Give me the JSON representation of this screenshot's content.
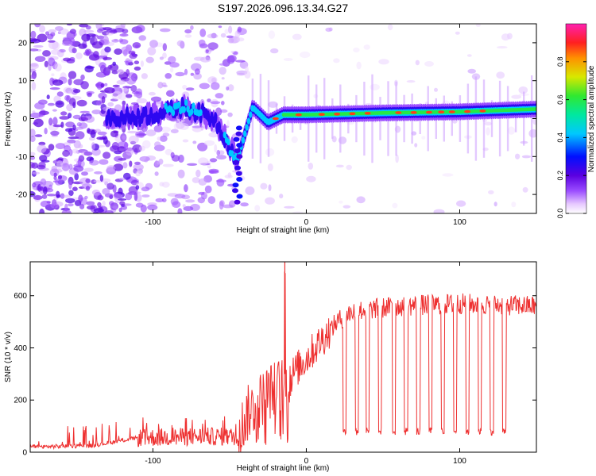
{
  "title": "S197.2026.096.13.34.G27",
  "colors": {
    "snr_line": "#ee3030",
    "axis": "#000000",
    "background": "#ffffff"
  },
  "chart_data": [
    {
      "type": "heatmap",
      "name": "spectrogram",
      "xlabel": "Height of straight line (km)",
      "ylabel": "Frequency (Hz)",
      "xlim": [
        -180,
        150
      ],
      "ylim": [
        -25,
        25
      ],
      "xticks": [
        -100,
        0,
        100
      ],
      "xtick_labels": [
        "-100",
        "0",
        "100"
      ],
      "yticks": [
        -20,
        -10,
        0,
        10,
        20
      ],
      "ytick_labels": [
        "-20",
        "-10",
        "0",
        "10",
        "20"
      ],
      "colorbar": {
        "label": "Normalized spectral amplitude",
        "range": [
          0,
          1
        ],
        "ticks": [
          0.0,
          0.2,
          0.4,
          0.6,
          0.8
        ],
        "tick_labels": [
          "0.0",
          "0.2",
          "0.4",
          "0.6",
          "0.8"
        ]
      },
      "ridge": {
        "description_points": [
          {
            "h": -125,
            "f": 0,
            "a": 0.3
          },
          {
            "h": -100,
            "f": 1,
            "a": 0.3
          },
          {
            "h": -80,
            "f": 3,
            "a": 0.35
          },
          {
            "h": -60,
            "f": 0,
            "a": 0.3
          },
          {
            "h": -45,
            "f": -11,
            "a": 0.35
          },
          {
            "h": -35,
            "f": 3,
            "a": 0.45
          },
          {
            "h": -25,
            "f": -1,
            "a": 0.45
          },
          {
            "h": -15,
            "f": 1,
            "a": 0.5
          },
          {
            "h": 0,
            "f": 1,
            "a": 0.55
          },
          {
            "h": 50,
            "f": 1.5,
            "a": 0.6
          },
          {
            "h": 100,
            "f": 1.8,
            "a": 0.6
          },
          {
            "h": 150,
            "f": 2.5,
            "a": 0.55
          }
        ],
        "peak_markers": [
          -20,
          -5,
          10,
          20,
          30,
          40,
          60,
          70,
          80,
          88,
          95,
          105,
          115
        ]
      }
    },
    {
      "type": "line",
      "name": "snr",
      "xlabel": "Height of straight line (km)",
      "ylabel": "SNR (10 * v/v)",
      "xlim": [
        -180,
        150
      ],
      "ylim": [
        0,
        730
      ],
      "xticks": [
        -100,
        0,
        100
      ],
      "xtick_labels": [
        "-100",
        "0",
        "100"
      ],
      "yticks": [
        0,
        200,
        400,
        600
      ],
      "ytick_labels": [
        "0",
        "200",
        "400",
        "600"
      ],
      "series": [
        {
          "name": "SNR",
          "envelope_points": [
            {
              "h": -180,
              "snr": 20
            },
            {
              "h": -140,
              "snr": 25
            },
            {
              "h": -110,
              "snr": 55
            },
            {
              "h": -70,
              "snr": 60
            },
            {
              "h": -45,
              "snr": 60
            },
            {
              "h": -38,
              "snr": 150
            },
            {
              "h": -25,
              "snr": 230
            },
            {
              "h": -15,
              "snr": 260
            },
            {
              "h": 0,
              "snr": 360
            },
            {
              "h": 10,
              "snr": 430
            },
            {
              "h": 20,
              "snr": 500
            },
            {
              "h": 30,
              "snr": 540
            },
            {
              "h": 60,
              "snr": 560
            },
            {
              "h": 100,
              "snr": 570
            },
            {
              "h": 150,
              "snr": 560
            }
          ],
          "spike": {
            "h": -14,
            "snr": 730
          },
          "dropouts": {
            "low_value": 80,
            "centers": [
              25,
              33,
              40,
              48,
              57,
              65,
              73,
              81,
              89,
              97,
              105,
              113,
              121,
              129
            ]
          }
        }
      ]
    }
  ]
}
